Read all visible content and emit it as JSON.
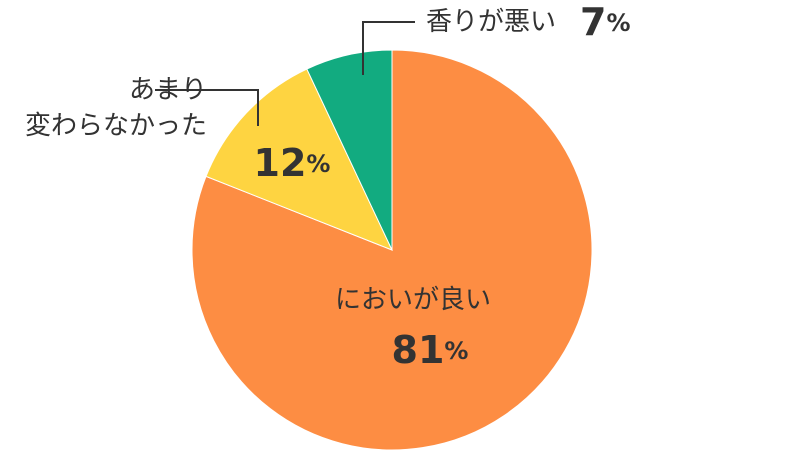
{
  "chart_data": {
    "type": "pie",
    "categories": [
      "においが良い",
      "あまり\n変わらなかった",
      "香りが悪い"
    ],
    "values": [
      81,
      12,
      7
    ],
    "value_labels": [
      "81%",
      "12%",
      "7%"
    ],
    "colors": [
      "#fd8d43",
      "#fed441",
      "#12ab80"
    ]
  }
}
